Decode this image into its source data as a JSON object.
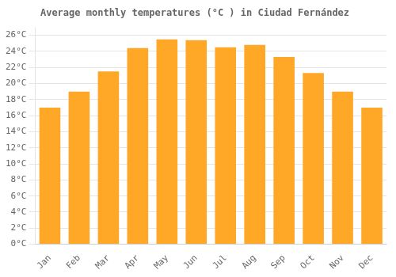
{
  "chart_data": {
    "type": "bar",
    "title": "Average monthly temperatures (°C ) in Ciudad Fernández",
    "categories": [
      "Jan",
      "Feb",
      "Mar",
      "Apr",
      "May",
      "Jun",
      "Jul",
      "Aug",
      "Sep",
      "Oct",
      "Nov",
      "Dec"
    ],
    "values": [
      17.0,
      19.0,
      21.5,
      24.4,
      25.5,
      25.4,
      24.5,
      24.8,
      23.3,
      21.3,
      19.0,
      17.0
    ],
    "color": "#FFA726",
    "ylim": [
      0,
      27
    ],
    "yticks": [
      {
        "value": 0,
        "label": "0°C"
      },
      {
        "value": 2,
        "label": "2°C"
      },
      {
        "value": 4,
        "label": "4°C"
      },
      {
        "value": 6,
        "label": "6°C"
      },
      {
        "value": 8,
        "label": "8°C"
      },
      {
        "value": 10,
        "label": "10°C"
      },
      {
        "value": 12,
        "label": "12°C"
      },
      {
        "value": 14,
        "label": "14°C"
      },
      {
        "value": 16,
        "label": "16°C"
      },
      {
        "value": 18,
        "label": "18°C"
      },
      {
        "value": 20,
        "label": "20°C"
      },
      {
        "value": 22,
        "label": "22°C"
      },
      {
        "value": 24,
        "label": "24°C"
      },
      {
        "value": 26,
        "label": "26°C"
      }
    ],
    "grid": true
  }
}
